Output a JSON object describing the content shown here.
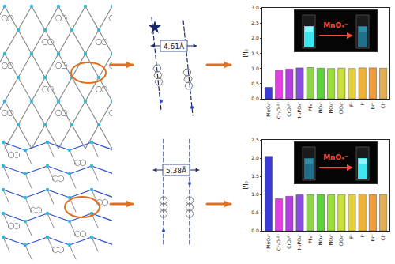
{
  "chart_data": [
    {
      "type": "bar",
      "categories": [
        "MnO₄⁻",
        "Cr₂O₇²⁻",
        "CrO₄²⁻",
        "H₂PO₄⁻",
        "PF₆⁻",
        "NO₃⁻",
        "NO₂⁻",
        "ClO₄⁻",
        "F⁻",
        "I⁻",
        "Br⁻",
        "Cl⁻"
      ],
      "values": [
        0.38,
        0.95,
        0.98,
        1.02,
        1.03,
        1.01,
        1.0,
        1.01,
        1.0,
        1.02,
        1.02,
        1.01
      ],
      "colors": [
        "#3b3bd6",
        "#e23fe0",
        "#b43fe0",
        "#8a4de0",
        "#8fd44f",
        "#5bd43a",
        "#9be03a",
        "#c8e03a",
        "#e8d13a",
        "#f0b33a",
        "#f09a3a",
        "#e0b050"
      ],
      "ylabel": "I/I₀",
      "ylim": [
        0,
        3.0
      ],
      "yticks": [
        {
          "value": 0,
          "label": "0.0"
        },
        {
          "value": 0.5,
          "label": "0.5"
        },
        {
          "value": 1.0,
          "label": "1.0"
        },
        {
          "value": 1.5,
          "label": "1.5"
        },
        {
          "value": 2.0,
          "label": "2.0"
        },
        {
          "value": 2.5,
          "label": "2.5"
        },
        {
          "value": 3.0,
          "label": "3.0"
        }
      ],
      "grid": false
    },
    {
      "type": "bar",
      "categories": [
        "MnO₄⁻",
        "Cr₂O₇²⁻",
        "CrO₄²⁻",
        "H₂PO₄⁻",
        "PF₆⁻",
        "NO₃⁻",
        "NO₂⁻",
        "ClO₄⁻",
        "F⁻",
        "I⁻",
        "Br⁻",
        "Cl⁻"
      ],
      "values": [
        2.05,
        0.88,
        0.95,
        0.99,
        1.0,
        1.0,
        0.99,
        1.0,
        1.0,
        1.01,
        1.0,
        1.0
      ],
      "colors": [
        "#3b3bd6",
        "#e23fe0",
        "#b43fe0",
        "#8a4de0",
        "#8fd44f",
        "#5bd43a",
        "#9be03a",
        "#c8e03a",
        "#e8d13a",
        "#f0b33a",
        "#f09a3a",
        "#e0b050"
      ],
      "ylabel": "I/I₀",
      "ylim": [
        0,
        2.5
      ],
      "yticks": [
        {
          "value": 0,
          "label": "0.0"
        },
        {
          "value": 0.5,
          "label": "0.5"
        },
        {
          "value": 1.0,
          "label": "1.0"
        },
        {
          "value": 1.5,
          "label": "1.5"
        },
        {
          "value": 2.0,
          "label": "2.0"
        },
        {
          "value": 2.5,
          "label": "2.5"
        }
      ],
      "grid": false
    }
  ],
  "panels": [
    {
      "distance_label": "4.61Å",
      "inset_label": "MnO₄⁻"
    },
    {
      "distance_label": "5.38Å",
      "inset_label": "MnO₄⁻"
    }
  ]
}
